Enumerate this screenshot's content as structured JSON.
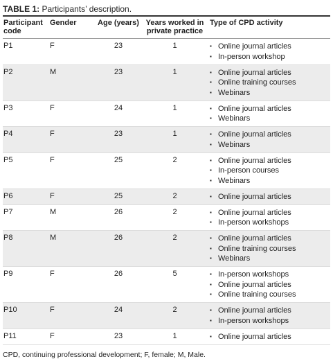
{
  "caption": {
    "label": "TABLE 1:",
    "text": " Participants’ description."
  },
  "table": {
    "headers": [
      "Participant code",
      "Gender",
      "Age (years)",
      "Years worked in private practice",
      "Type of CPD activity"
    ],
    "rows": [
      [
        "P1",
        "F",
        23,
        1,
        [
          "Online journal articles",
          "In-person workshop"
        ]
      ],
      [
        "P2",
        "M",
        23,
        1,
        [
          "Online journal articles",
          "Online training courses",
          "Webinars"
        ]
      ],
      [
        "P3",
        "F",
        24,
        1,
        [
          "Online journal articles",
          "Webinars"
        ]
      ],
      [
        "P4",
        "F",
        23,
        1,
        [
          "Online journal articles",
          "Webinars"
        ]
      ],
      [
        "P5",
        "F",
        25,
        2,
        [
          "Online journal articles",
          "In-person courses",
          "Webinars"
        ]
      ],
      [
        "P6",
        "F",
        25,
        2,
        [
          "Online journal articles"
        ]
      ],
      [
        "P7",
        "M",
        26,
        2,
        [
          "Online journal articles",
          "In-person workshops"
        ]
      ],
      [
        "P8",
        "M",
        26,
        2,
        [
          "Online journal articles",
          "Online training courses",
          "Webinars"
        ]
      ],
      [
        "P9",
        "F",
        26,
        5,
        [
          "In-person workshops",
          "Online journal articles",
          "Online training courses"
        ]
      ],
      [
        "P10",
        "F",
        24,
        2,
        [
          "Online journal articles",
          "In-person workshops"
        ]
      ],
      [
        "P11",
        "F",
        23,
        1,
        [
          "Online journal articles"
        ]
      ]
    ]
  },
  "footnote": "CPD, continuing professional development; F, female; M, Male."
}
